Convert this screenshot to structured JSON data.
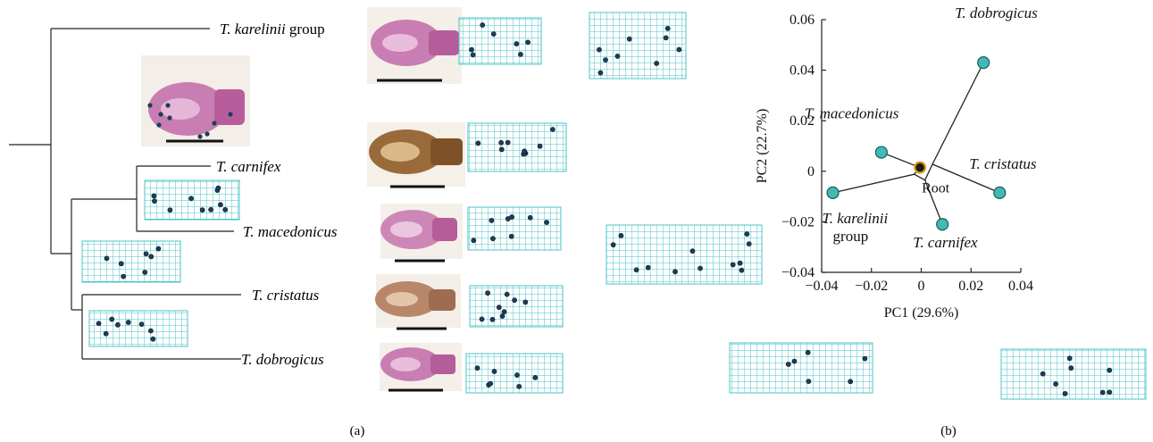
{
  "colors": {
    "grid": "#4ec3c9",
    "node_fill": "#43b8b5",
    "node_stroke": "#1b5c5a",
    "root_fill": "#1c1c1c",
    "root_ring": "#e0a21c",
    "landmark": "#1e3d5a",
    "skull": "#c06aa8",
    "skull_brown": "#9a6b3a"
  },
  "panels": {
    "a": "(a)",
    "b": "(b)"
  },
  "tree": {
    "taxa": [
      {
        "id": "karelinii",
        "italic": "T. karelinii",
        "suffix": " group"
      },
      {
        "id": "carnifex",
        "italic": "T. carnifex",
        "suffix": ""
      },
      {
        "id": "macedonicus",
        "italic": "T. macedonicus",
        "suffix": ""
      },
      {
        "id": "cristatus",
        "italic": "T. cristatus",
        "suffix": ""
      },
      {
        "id": "dobrogicus",
        "italic": "T. dobrogicus",
        "suffix": ""
      }
    ]
  },
  "chart_data": {
    "type": "scatter",
    "xlabel": "PC1 (29.6%)",
    "ylabel": "PC2 (22.7%)",
    "xlim": [
      -0.04,
      0.04
    ],
    "ylim": [
      -0.04,
      0.06
    ],
    "xticks": [
      "−0.04",
      "−0.02",
      "0",
      "0.02",
      "0.04"
    ],
    "yticks": [
      "−0.04",
      "−0.02",
      "0",
      "0.02",
      "0.04",
      "0.06"
    ],
    "xtick_values": [
      -0.04,
      -0.02,
      0,
      0.02,
      0.04
    ],
    "ytick_values": [
      -0.04,
      -0.02,
      0,
      0.02,
      0.04,
      0.06
    ],
    "nodes": [
      {
        "id": "root",
        "label": "Root",
        "x": -0.0005,
        "y": 0.0015
      },
      {
        "id": "n1",
        "label": "",
        "x": -0.0028,
        "y": -0.0012
      },
      {
        "id": "n2",
        "label": "",
        "x": 0.0015,
        "y": -0.0035
      },
      {
        "id": "n3",
        "label": "",
        "x": 0.0045,
        "y": 0.0028
      }
    ],
    "points": [
      {
        "id": "dobrogicus",
        "label": "T. dobrogicus",
        "x": 0.025,
        "y": 0.043
      },
      {
        "id": "macedonicus",
        "label": "T. macedonicus",
        "x": -0.016,
        "y": 0.0075
      },
      {
        "id": "karelinii",
        "label": "T. karelinii",
        "label2": "group",
        "x": -0.0355,
        "y": -0.0085
      },
      {
        "id": "cristatus",
        "label": "T. cristatus",
        "x": 0.0315,
        "y": -0.0085
      },
      {
        "id": "carnifex",
        "label": "T. carnifex",
        "x": 0.0085,
        "y": -0.021
      }
    ],
    "edges": [
      [
        "root",
        "n1"
      ],
      [
        "n1",
        "karelinii"
      ],
      [
        "n1",
        "n2"
      ],
      [
        "n2",
        "carnifex"
      ],
      [
        "n2",
        "n3"
      ],
      [
        "n3",
        "dobrogicus"
      ],
      [
        "n3",
        "cristatus"
      ],
      [
        "root",
        "macedonicus"
      ]
    ]
  }
}
